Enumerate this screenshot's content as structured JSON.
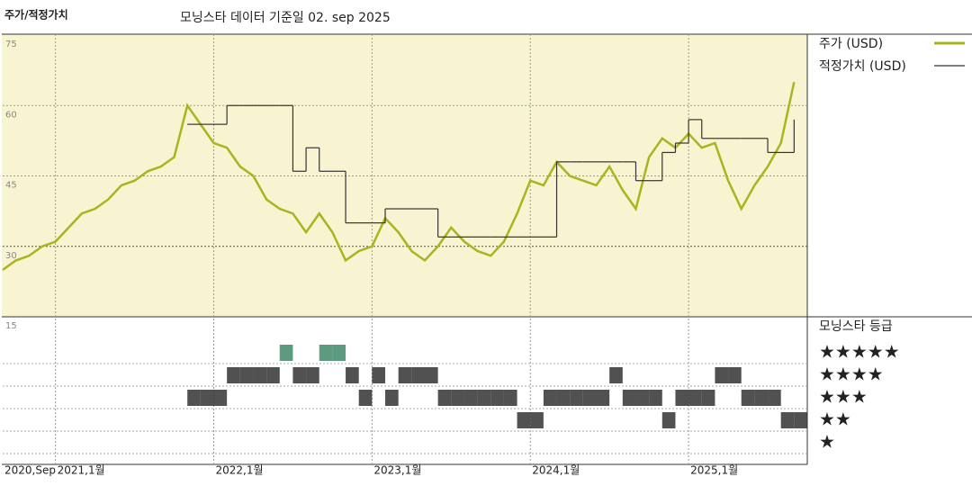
{
  "chart_data": {
    "type": "line",
    "title": "주가/적정가치",
    "subtitle": "모닝스타 데이터 기준일 02. sep 2025",
    "x": [
      "2020-09",
      "2020-10",
      "2020-11",
      "2020-12",
      "2021-01",
      "2021-02",
      "2021-03",
      "2021-04",
      "2021-05",
      "2021-06",
      "2021-07",
      "2021-08",
      "2021-09",
      "2021-10",
      "2021-11",
      "2021-12",
      "2022-01",
      "2022-02",
      "2022-03",
      "2022-04",
      "2022-05",
      "2022-06",
      "2022-07",
      "2022-08",
      "2022-09",
      "2022-10",
      "2022-11",
      "2022-12",
      "2023-01",
      "2023-02",
      "2023-03",
      "2023-04",
      "2023-05",
      "2023-06",
      "2023-07",
      "2023-08",
      "2023-09",
      "2023-10",
      "2023-11",
      "2023-12",
      "2024-01",
      "2024-02",
      "2024-03",
      "2024-04",
      "2024-05",
      "2024-06",
      "2024-07",
      "2024-08",
      "2024-09",
      "2024-10",
      "2024-11",
      "2024-12",
      "2025-01",
      "2025-02",
      "2025-03",
      "2025-04",
      "2025-05",
      "2025-06",
      "2025-07",
      "2025-08",
      "2025-09"
    ],
    "xlim": [
      "2020-09",
      "2025-10"
    ],
    "xticks": [
      {
        "value": "2020-09",
        "label": "2020,Sep"
      },
      {
        "value": "2021-01",
        "label": "2021,1월"
      },
      {
        "value": "2022-01",
        "label": "2022,1월"
      },
      {
        "value": "2023-01",
        "label": "2023,1월"
      },
      {
        "value": "2024-01",
        "label": "2024,1월"
      },
      {
        "value": "2025-01",
        "label": "2025,1월"
      }
    ],
    "ylim": [
      15,
      75
    ],
    "yticks": [
      15,
      30,
      45,
      60,
      75
    ],
    "grid": true,
    "series": [
      {
        "name": "주가 (USD)",
        "color": "#a9b41e",
        "values": [
          25,
          27,
          28,
          30,
          31,
          34,
          37,
          38,
          40,
          43,
          44,
          46,
          47,
          49,
          60,
          56,
          52,
          51,
          47,
          45,
          40,
          38,
          37,
          33,
          37,
          33,
          27,
          29,
          30,
          36,
          33,
          29,
          27,
          30,
          34,
          31,
          29,
          28,
          31,
          37,
          44,
          43,
          48,
          45,
          44,
          43,
          47,
          42,
          38,
          49,
          53,
          51,
          54,
          51,
          52,
          44,
          38,
          43,
          47,
          52,
          65
        ]
      },
      {
        "name": "적정가치 (USD)",
        "color": "#333333",
        "values": [
          null,
          null,
          null,
          null,
          null,
          null,
          null,
          null,
          null,
          null,
          null,
          null,
          null,
          null,
          56,
          56,
          56,
          60,
          60,
          60,
          60,
          60,
          46,
          51,
          46,
          46,
          35,
          35,
          35,
          38,
          38,
          38,
          38,
          32,
          32,
          32,
          32,
          32,
          32,
          32,
          32,
          32,
          48,
          48,
          48,
          48,
          48,
          48,
          44,
          44,
          50,
          52,
          57,
          53,
          53,
          53,
          53,
          53,
          50,
          50,
          57
        ]
      }
    ],
    "ratings": {
      "name": "모닝스타 등급",
      "labels": [
        "★★★★★",
        "★★★★",
        "★★★",
        "★★",
        "★"
      ],
      "color": "#333333",
      "top_color": "#3f8a6a",
      "values": [
        null,
        null,
        null,
        null,
        null,
        null,
        null,
        null,
        null,
        null,
        null,
        null,
        null,
        null,
        3,
        3,
        3,
        4,
        4,
        4,
        4,
        5,
        4,
        4,
        5,
        5,
        4,
        3,
        4,
        3,
        4,
        4,
        4,
        3,
        3,
        3,
        3,
        3,
        3,
        2,
        2,
        3,
        3,
        3,
        3,
        3,
        4,
        3,
        3,
        3,
        2,
        3,
        3,
        3,
        4,
        4,
        3,
        3,
        3,
        2,
        2
      ]
    }
  }
}
